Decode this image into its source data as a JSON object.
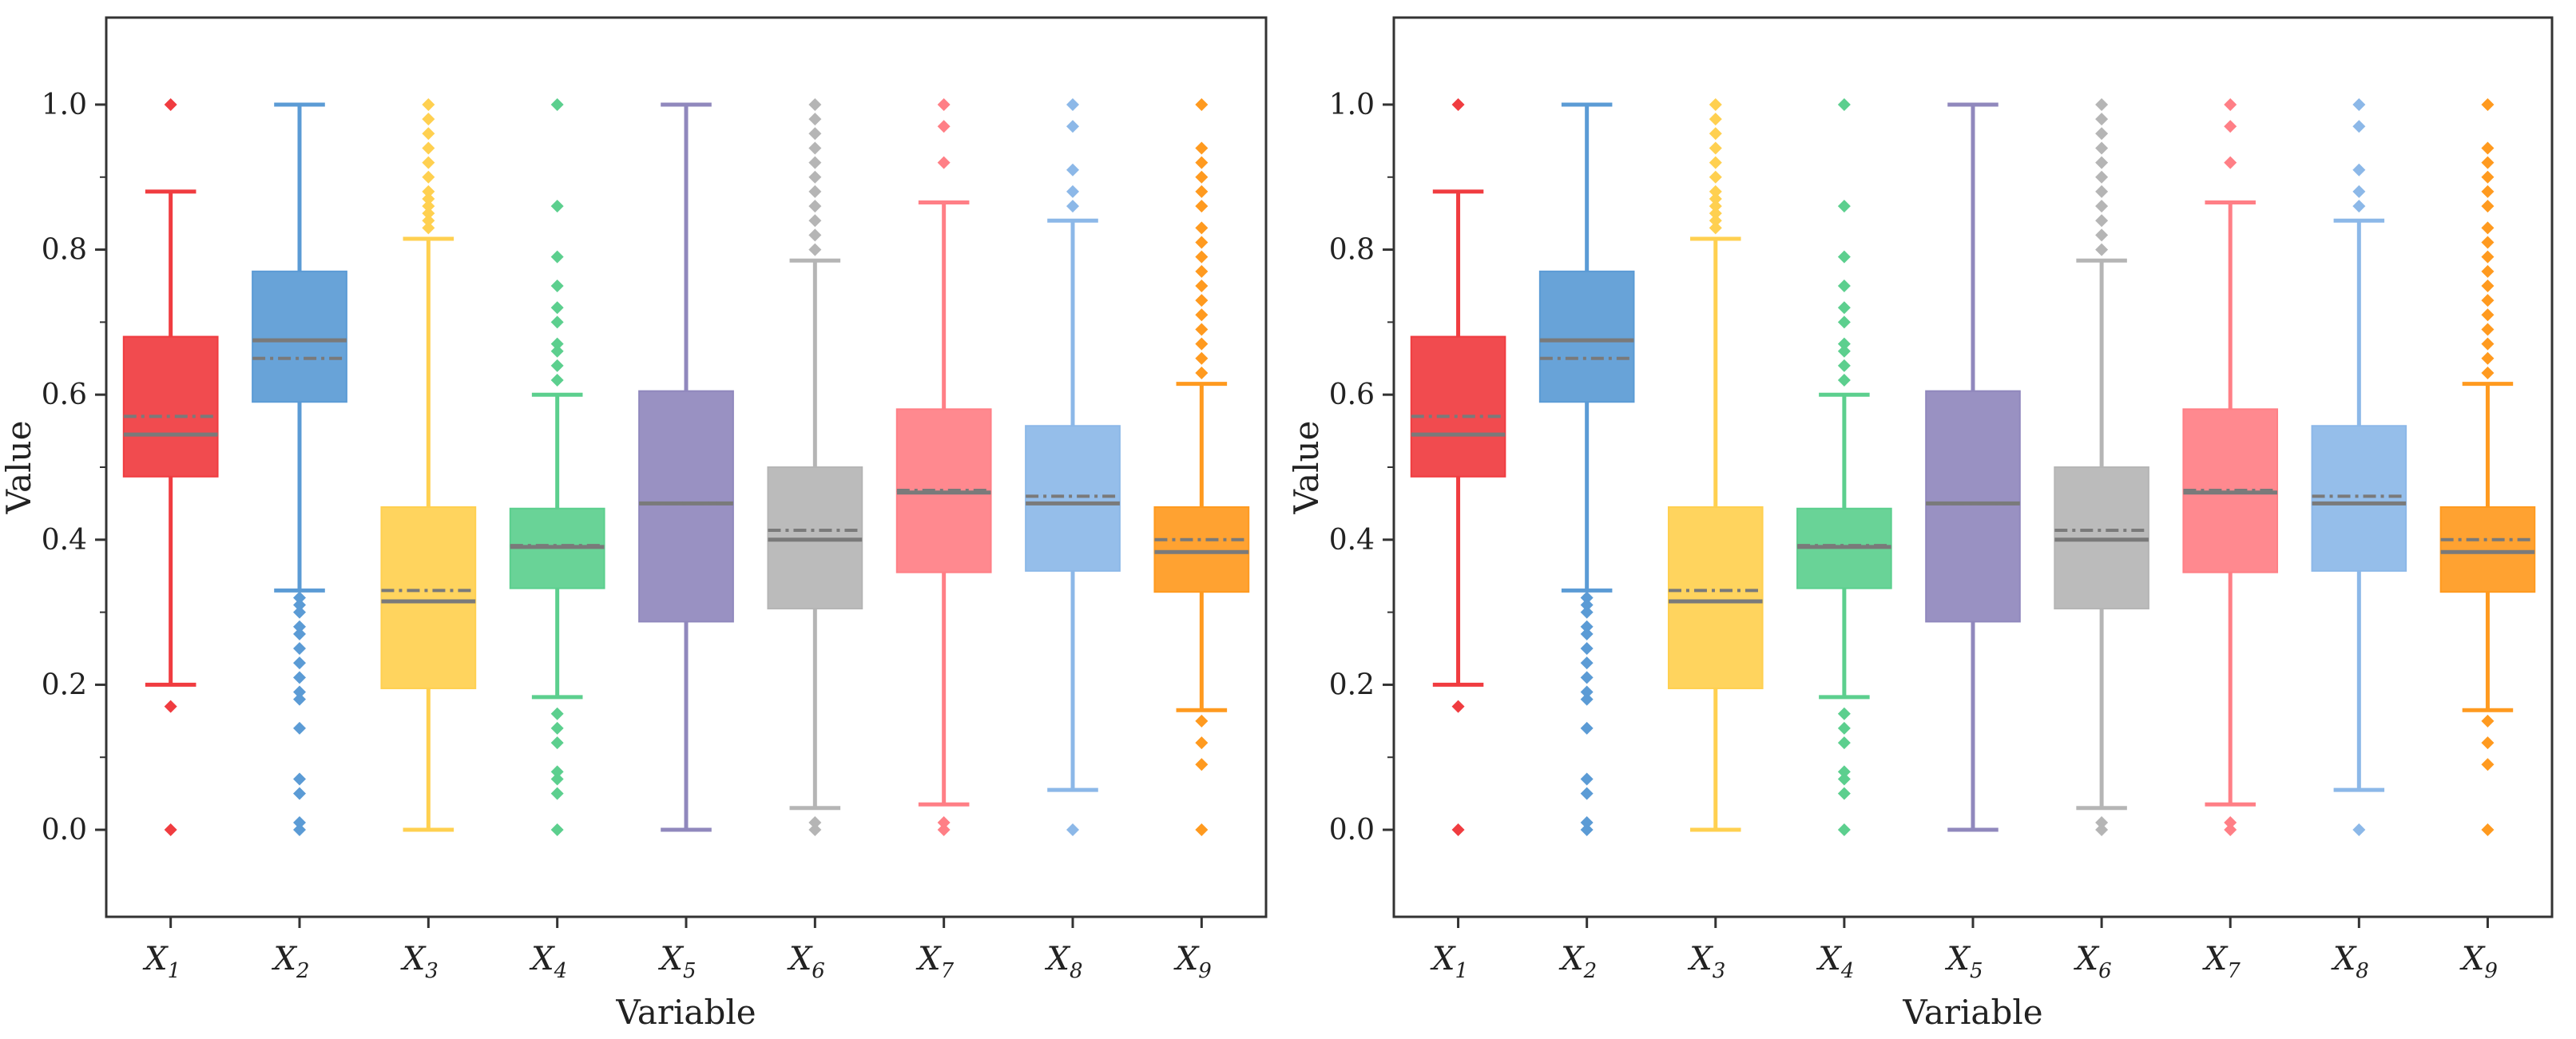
{
  "chart_data": [
    {
      "type": "box",
      "panel": "left",
      "xlabel": "Variable",
      "ylabel": "Value",
      "ylim": [
        -0.12,
        1.12
      ],
      "yticks": [
        "0.0",
        "0.2",
        "0.4",
        "0.6",
        "0.8",
        "1.0"
      ],
      "ytick_values": [
        0.0,
        0.2,
        0.4,
        0.6,
        0.8,
        1.0
      ],
      "categories": [
        {
          "main": "X",
          "sub": "1"
        },
        {
          "main": "X",
          "sub": "2"
        },
        {
          "main": "X",
          "sub": "3"
        },
        {
          "main": "X",
          "sub": "4"
        },
        {
          "main": "X",
          "sub": "5"
        },
        {
          "main": "X",
          "sub": "6"
        },
        {
          "main": "X",
          "sub": "7"
        },
        {
          "main": "X",
          "sub": "8"
        },
        {
          "main": "X",
          "sub": "9"
        }
      ],
      "boxes": [
        {
          "color": "#f03c40",
          "whisker_low": 0.2,
          "q1": 0.487,
          "median": 0.545,
          "mean": 0.57,
          "q3": 0.68,
          "whisker_high": 0.88,
          "outliers": [
            0.0,
            0.17,
            1.0
          ]
        },
        {
          "color": "#5b9bd5",
          "whisker_low": 0.33,
          "q1": 0.59,
          "median": 0.675,
          "mean": 0.65,
          "q3": 0.77,
          "whisker_high": 1.0,
          "outliers": [
            0.0,
            0.01,
            0.05,
            0.07,
            0.14,
            0.18,
            0.19,
            0.21,
            0.23,
            0.25,
            0.27,
            0.28,
            0.3,
            0.31,
            0.32
          ]
        },
        {
          "color": "#ffd050",
          "whisker_low": 0.0,
          "q1": 0.195,
          "median": 0.315,
          "mean": 0.33,
          "q3": 0.445,
          "whisker_high": 0.815,
          "outliers": [
            0.83,
            0.84,
            0.85,
            0.86,
            0.87,
            0.88,
            0.9,
            0.92,
            0.94,
            0.96,
            0.98,
            1.0
          ]
        },
        {
          "color": "#5ccf8e",
          "whisker_low": 0.183,
          "q1": 0.333,
          "median": 0.39,
          "mean": 0.392,
          "q3": 0.443,
          "whisker_high": 0.6,
          "outliers": [
            0.0,
            0.05,
            0.07,
            0.08,
            0.12,
            0.14,
            0.16,
            0.62,
            0.64,
            0.66,
            0.67,
            0.7,
            0.72,
            0.75,
            0.79,
            0.86,
            1.0
          ]
        },
        {
          "color": "#9088bd",
          "whisker_low": 0.0,
          "q1": 0.287,
          "median": 0.45,
          "mean": 0.45,
          "q3": 0.605,
          "whisker_high": 1.0,
          "outliers": []
        },
        {
          "color": "#b5b5b5",
          "whisker_low": 0.03,
          "q1": 0.305,
          "median": 0.4,
          "mean": 0.413,
          "q3": 0.5,
          "whisker_high": 0.785,
          "outliers": [
            0.0,
            0.01,
            0.8,
            0.82,
            0.84,
            0.86,
            0.88,
            0.9,
            0.92,
            0.94,
            0.96,
            0.98,
            1.0
          ]
        },
        {
          "color": "#ff7f86",
          "whisker_low": 0.035,
          "q1": 0.355,
          "median": 0.465,
          "mean": 0.468,
          "q3": 0.58,
          "whisker_high": 0.865,
          "outliers": [
            0.0,
            0.01,
            0.92,
            0.97,
            1.0
          ]
        },
        {
          "color": "#8cb8e8",
          "whisker_low": 0.055,
          "q1": 0.357,
          "median": 0.45,
          "mean": 0.46,
          "q3": 0.557,
          "whisker_high": 0.84,
          "outliers": [
            0.0,
            0.86,
            0.88,
            0.91,
            0.97,
            1.0
          ]
        },
        {
          "color": "#ff9a1f",
          "whisker_low": 0.165,
          "q1": 0.328,
          "median": 0.383,
          "mean": 0.4,
          "q3": 0.445,
          "whisker_high": 0.615,
          "outliers": [
            0.0,
            0.09,
            0.12,
            0.15,
            0.63,
            0.65,
            0.67,
            0.69,
            0.71,
            0.73,
            0.75,
            0.77,
            0.79,
            0.81,
            0.83,
            0.86,
            0.88,
            0.9,
            0.92,
            0.94,
            1.0
          ]
        }
      ]
    },
    {
      "type": "box",
      "panel": "right",
      "xlabel": "Variable",
      "ylabel": "Value",
      "ylim": [
        -0.12,
        1.12
      ],
      "yticks": [
        "0.0",
        "0.2",
        "0.4",
        "0.6",
        "0.8",
        "1.0"
      ],
      "ytick_values": [
        0.0,
        0.2,
        0.4,
        0.6,
        0.8,
        1.0
      ],
      "categories": [
        {
          "main": "X",
          "sub": "1"
        },
        {
          "main": "X",
          "sub": "2"
        },
        {
          "main": "X",
          "sub": "3"
        },
        {
          "main": "X",
          "sub": "4"
        },
        {
          "main": "X",
          "sub": "5"
        },
        {
          "main": "X",
          "sub": "6"
        },
        {
          "main": "X",
          "sub": "7"
        },
        {
          "main": "X",
          "sub": "8"
        },
        {
          "main": "X",
          "sub": "9"
        }
      ],
      "boxes": [
        {
          "color": "#f03c40",
          "whisker_low": 0.2,
          "q1": 0.487,
          "median": 0.545,
          "mean": 0.57,
          "q3": 0.68,
          "whisker_high": 0.88,
          "outliers": [
            0.0,
            0.17,
            1.0
          ]
        },
        {
          "color": "#5b9bd5",
          "whisker_low": 0.33,
          "q1": 0.59,
          "median": 0.675,
          "mean": 0.65,
          "q3": 0.77,
          "whisker_high": 1.0,
          "outliers": [
            0.0,
            0.01,
            0.05,
            0.07,
            0.14,
            0.18,
            0.19,
            0.21,
            0.23,
            0.25,
            0.27,
            0.28,
            0.3,
            0.31,
            0.32
          ]
        },
        {
          "color": "#ffd050",
          "whisker_low": 0.0,
          "q1": 0.195,
          "median": 0.315,
          "mean": 0.33,
          "q3": 0.445,
          "whisker_high": 0.815,
          "outliers": [
            0.83,
            0.84,
            0.85,
            0.86,
            0.87,
            0.88,
            0.9,
            0.92,
            0.94,
            0.96,
            0.98,
            1.0
          ]
        },
        {
          "color": "#5ccf8e",
          "whisker_low": 0.183,
          "q1": 0.333,
          "median": 0.39,
          "mean": 0.392,
          "q3": 0.443,
          "whisker_high": 0.6,
          "outliers": [
            0.0,
            0.05,
            0.07,
            0.08,
            0.12,
            0.14,
            0.16,
            0.62,
            0.64,
            0.66,
            0.67,
            0.7,
            0.72,
            0.75,
            0.79,
            0.86,
            1.0
          ]
        },
        {
          "color": "#9088bd",
          "whisker_low": 0.0,
          "q1": 0.287,
          "median": 0.45,
          "mean": 0.45,
          "q3": 0.605,
          "whisker_high": 1.0,
          "outliers": []
        },
        {
          "color": "#b5b5b5",
          "whisker_low": 0.03,
          "q1": 0.305,
          "median": 0.4,
          "mean": 0.413,
          "q3": 0.5,
          "whisker_high": 0.785,
          "outliers": [
            0.0,
            0.01,
            0.8,
            0.82,
            0.84,
            0.86,
            0.88,
            0.9,
            0.92,
            0.94,
            0.96,
            0.98,
            1.0
          ]
        },
        {
          "color": "#ff7f86",
          "whisker_low": 0.035,
          "q1": 0.355,
          "median": 0.465,
          "mean": 0.468,
          "q3": 0.58,
          "whisker_high": 0.865,
          "outliers": [
            0.0,
            0.01,
            0.92,
            0.97,
            1.0
          ]
        },
        {
          "color": "#8cb8e8",
          "whisker_low": 0.055,
          "q1": 0.357,
          "median": 0.45,
          "mean": 0.46,
          "q3": 0.557,
          "whisker_high": 0.84,
          "outliers": [
            0.0,
            0.86,
            0.88,
            0.91,
            0.97,
            1.0
          ]
        },
        {
          "color": "#ff9a1f",
          "whisker_low": 0.165,
          "q1": 0.328,
          "median": 0.383,
          "mean": 0.4,
          "q3": 0.445,
          "whisker_high": 0.615,
          "outliers": [
            0.0,
            0.09,
            0.12,
            0.15,
            0.63,
            0.65,
            0.67,
            0.69,
            0.71,
            0.73,
            0.75,
            0.77,
            0.79,
            0.81,
            0.83,
            0.86,
            0.88,
            0.9,
            0.92,
            0.94,
            1.0
          ]
        }
      ]
    }
  ]
}
